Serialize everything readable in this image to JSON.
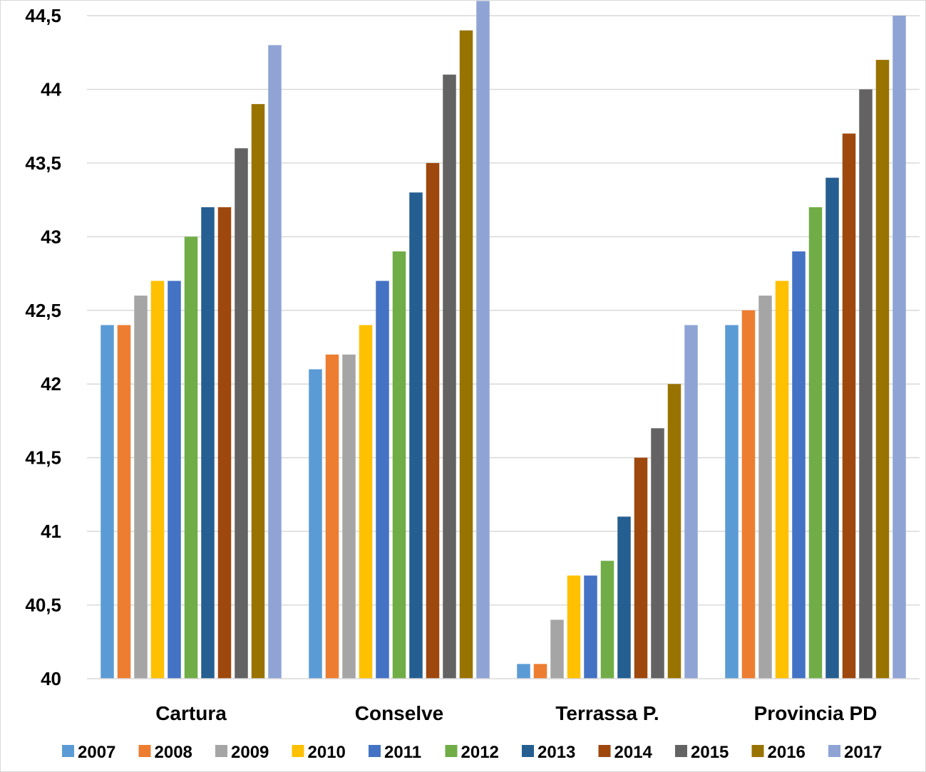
{
  "chart_data": {
    "type": "bar",
    "title": "",
    "xlabel": "",
    "ylabel": "",
    "ylim": [
      40,
      44.5
    ],
    "yticks": [
      "40",
      "40,5",
      "41",
      "41,5",
      "42",
      "42,5",
      "43",
      "43,5",
      "44",
      "44,5"
    ],
    "ytick_values": [
      40,
      40.5,
      41,
      41.5,
      42,
      42.5,
      43,
      43.5,
      44,
      44.5
    ],
    "grid": true,
    "legend_position": "bottom",
    "categories": [
      "Cartura",
      "Conselve",
      "Terrassa P.",
      "Provincia PD"
    ],
    "series": [
      {
        "name": "2007",
        "color": "#5B9BD5",
        "values": [
          42.4,
          42.1,
          40.1,
          42.4
        ]
      },
      {
        "name": "2008",
        "color": "#ED7D31",
        "values": [
          42.4,
          42.2,
          40.1,
          42.5
        ]
      },
      {
        "name": "2009",
        "color": "#A5A5A5",
        "values": [
          42.6,
          42.2,
          40.4,
          42.6
        ]
      },
      {
        "name": "2010",
        "color": "#FFC000",
        "values": [
          42.7,
          42.4,
          40.7,
          42.7
        ]
      },
      {
        "name": "2011",
        "color": "#4472C4",
        "values": [
          42.7,
          42.7,
          40.7,
          42.9
        ]
      },
      {
        "name": "2012",
        "color": "#70AD47",
        "values": [
          43.0,
          42.9,
          40.8,
          43.2
        ]
      },
      {
        "name": "2013",
        "color": "#255E91",
        "values": [
          43.2,
          43.3,
          41.1,
          43.4
        ]
      },
      {
        "name": "2014",
        "color": "#9E480E",
        "values": [
          43.2,
          43.5,
          41.5,
          43.7
        ]
      },
      {
        "name": "2015",
        "color": "#636363",
        "values": [
          43.6,
          44.1,
          41.7,
          44.0
        ]
      },
      {
        "name": "2016",
        "color": "#997300",
        "values": [
          43.9,
          44.4,
          42.0,
          44.2
        ]
      },
      {
        "name": "2017",
        "color": "#8FA4D5",
        "values": [
          44.3,
          44.6,
          42.4,
          44.5
        ]
      }
    ]
  }
}
